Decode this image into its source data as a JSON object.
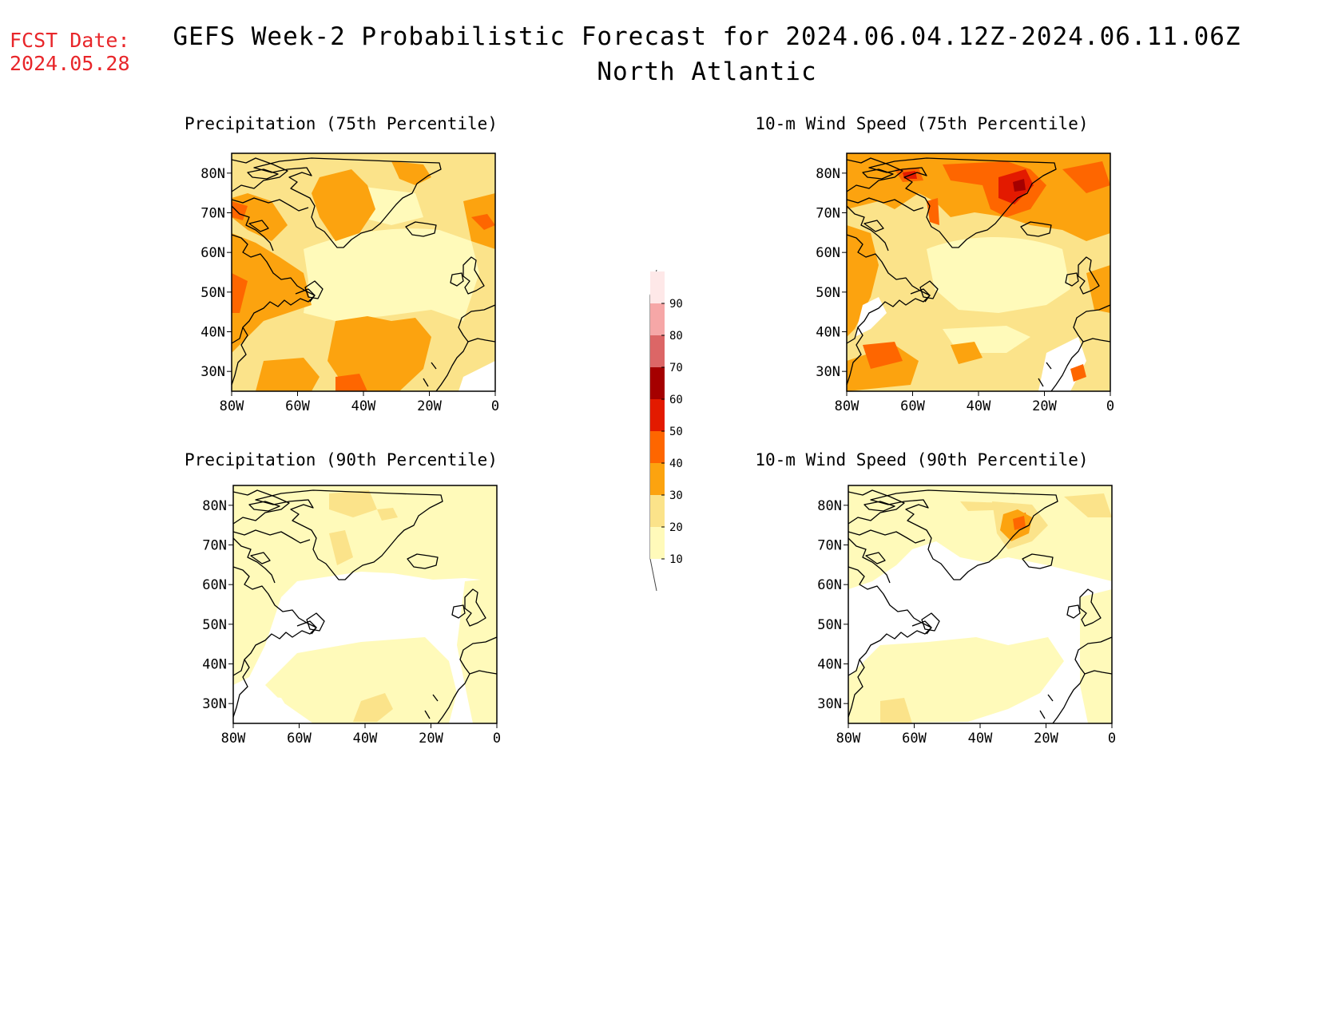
{
  "forecast_date": {
    "label": "FCST Date:",
    "value": "2024.05.28"
  },
  "title": "GEFS Week-2 Probabilistic Forecast for 2024.06.04.12Z-2024.06.11.06Z",
  "subtitle": "North Atlantic",
  "colors": {
    "levels": [
      "#fffaba",
      "#fbe38a",
      "#fca30f",
      "#fe6600",
      "#e31a00",
      "#a50000",
      "#dc6666",
      "#f6a7a7",
      "#fee8e8"
    ],
    "coast": "#000000",
    "fcst_text": "#e8262a"
  },
  "colorbar": {
    "ticks": [
      "10",
      "20",
      "30",
      "40",
      "50",
      "60",
      "70",
      "80",
      "90"
    ]
  },
  "panels": [
    {
      "id": "precip75",
      "title": "Precipitation (75th Percentile)"
    },
    {
      "id": "wind75",
      "title": "10-m Wind Speed (75th Percentile)"
    },
    {
      "id": "precip90",
      "title": "Precipitation (90th Percentile)"
    },
    {
      "id": "wind90",
      "title": "10-m Wind Speed (90th Percentile)"
    }
  ],
  "axes": {
    "lat_labels": [
      "80N",
      "70N",
      "60N",
      "50N",
      "40N",
      "30N"
    ],
    "lon_labels": [
      "80W",
      "60W",
      "40W",
      "20W",
      "0"
    ],
    "lat_values": [
      80,
      70,
      60,
      50,
      40,
      30
    ],
    "lon_values": [
      -80,
      -60,
      -40,
      -20,
      0
    ],
    "lat_range": [
      25,
      85
    ],
    "lon_range": [
      -80,
      0
    ]
  }
}
